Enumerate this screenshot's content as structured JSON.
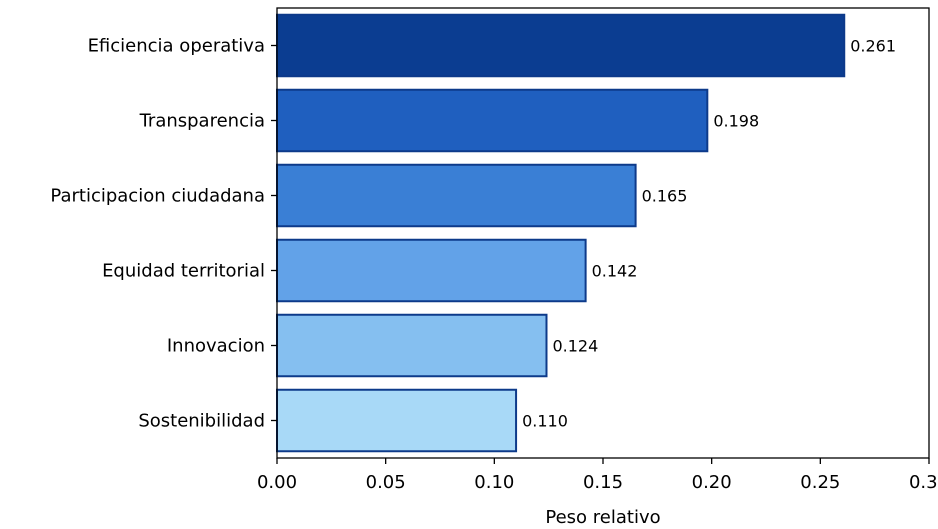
{
  "chart_data": {
    "type": "bar",
    "orientation": "horizontal",
    "categories": [
      "Eficiencia operativa",
      "Transparencia",
      "Participacion ciudadana",
      "Equidad territorial",
      "Innovacion",
      "Sostenibilidad"
    ],
    "values": [
      0.261,
      0.198,
      0.165,
      0.142,
      0.124,
      0.11
    ],
    "value_labels": [
      "0.261",
      "0.198",
      "0.165",
      "0.142",
      "0.124",
      "0.110"
    ],
    "bar_colors": [
      "#0b3d91",
      "#1f5fbf",
      "#3a7fd5",
      "#62a2e8",
      "#85bff0",
      "#a8d9f7"
    ],
    "edge_color": "#0d3a8a",
    "xlabel": "Peso relativo",
    "ylabel": "",
    "title": "",
    "xlim": [
      0,
      0.3
    ],
    "xticks": [
      0.0,
      0.05,
      0.1,
      0.15,
      0.2,
      0.25,
      0.3
    ],
    "xtick_labels": [
      "0.00",
      "0.05",
      "0.10",
      "0.15",
      "0.20",
      "0.25",
      "0.30"
    ],
    "grid": false,
    "legend": "none"
  }
}
